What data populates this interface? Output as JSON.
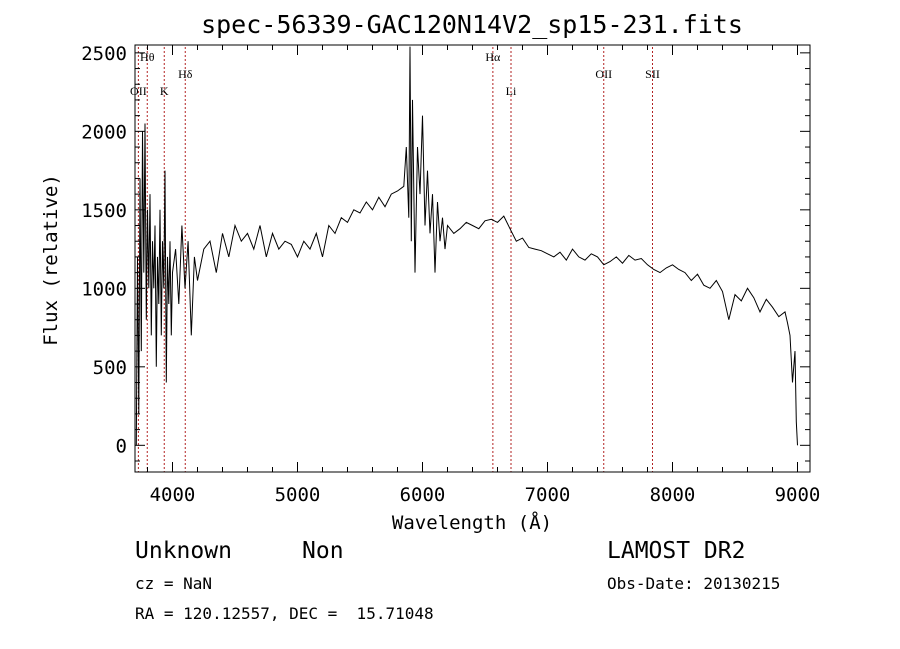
{
  "chart_data": {
    "type": "line",
    "title": "spec-56339-GAC120N14V2_sp15-231.fits",
    "xlabel": "Wavelength (Å)",
    "ylabel": "Flux (relative)",
    "xlim": [
      3700,
      9100
    ],
    "ylim": [
      -170,
      2550
    ],
    "xticks": [
      4000,
      5000,
      6000,
      7000,
      8000,
      9000
    ],
    "yticks": [
      0,
      500,
      1000,
      1500,
      2000,
      2500
    ],
    "grid": false,
    "line_color": "#000000",
    "marker_color": "#b22222",
    "spectral_lines": [
      {
        "label": "OII",
        "x": 3727,
        "tier": "low"
      },
      {
        "label": "Hθ",
        "x": 3798,
        "tier": "high"
      },
      {
        "label": "K",
        "x": 3934,
        "tier": "low"
      },
      {
        "label": "Hδ",
        "x": 4102,
        "tier": "mid"
      },
      {
        "label": "Hα",
        "x": 6563,
        "tier": "high"
      },
      {
        "label": "Li",
        "x": 6708,
        "tier": "low"
      },
      {
        "label": "OII",
        "x": 7450,
        "tier": "mid"
      },
      {
        "label": "SII",
        "x": 7840,
        "tier": "mid"
      }
    ],
    "series": [
      {
        "x": [
          3710,
          3720,
          3730,
          3740,
          3750,
          3760,
          3770,
          3780,
          3790,
          3800,
          3810,
          3820,
          3830,
          3840,
          3850,
          3860,
          3870,
          3880,
          3890,
          3900,
          3910,
          3920,
          3930,
          3940,
          3950,
          3960,
          3970,
          3980,
          3990,
          4000,
          4025,
          4050,
          4075,
          4100,
          4125,
          4150,
          4175,
          4200,
          4250,
          4300,
          4350,
          4400,
          4450,
          4500,
          4550,
          4600,
          4650,
          4700,
          4750,
          4800,
          4850,
          4900,
          4950,
          5000,
          5050,
          5100,
          5150,
          5200,
          5250,
          5300,
          5350,
          5400,
          5450,
          5500,
          5550,
          5600,
          5650,
          5700,
          5750,
          5800,
          5850,
          5870,
          5890,
          5900,
          5910,
          5920,
          5940,
          5960,
          5980,
          6000,
          6020,
          6040,
          6060,
          6080,
          6100,
          6120,
          6140,
          6160,
          6180,
          6200,
          6250,
          6300,
          6350,
          6400,
          6450,
          6500,
          6550,
          6600,
          6650,
          6700,
          6750,
          6800,
          6850,
          6900,
          6950,
          7000,
          7050,
          7100,
          7150,
          7200,
          7250,
          7300,
          7350,
          7400,
          7450,
          7500,
          7550,
          7600,
          7650,
          7700,
          7750,
          7800,
          7850,
          7900,
          7950,
          8000,
          8050,
          8100,
          8150,
          8200,
          8250,
          8300,
          8350,
          8400,
          8450,
          8500,
          8550,
          8600,
          8650,
          8700,
          8750,
          8800,
          8850,
          8900,
          8920,
          8940,
          8960,
          8980,
          8990,
          9000
        ],
        "y": [
          0,
          1200,
          200,
          1700,
          600,
          2000,
          1100,
          2050,
          800,
          1500,
          1000,
          1600,
          700,
          1300,
          1000,
          1400,
          500,
          1200,
          900,
          1500,
          700,
          1300,
          1000,
          1750,
          400,
          1200,
          900,
          1300,
          700,
          1100,
          1250,
          900,
          1400,
          1000,
          1300,
          700,
          1200,
          1050,
          1250,
          1300,
          1100,
          1350,
          1200,
          1400,
          1300,
          1350,
          1250,
          1400,
          1200,
          1350,
          1250,
          1300,
          1280,
          1200,
          1300,
          1250,
          1350,
          1200,
          1400,
          1350,
          1450,
          1420,
          1500,
          1480,
          1550,
          1500,
          1580,
          1520,
          1600,
          1620,
          1650,
          1900,
          1450,
          2540,
          1300,
          2200,
          1100,
          1900,
          1600,
          2100,
          1400,
          1750,
          1350,
          1600,
          1100,
          1550,
          1300,
          1450,
          1250,
          1400,
          1350,
          1380,
          1420,
          1400,
          1380,
          1430,
          1440,
          1420,
          1460,
          1380,
          1300,
          1320,
          1260,
          1250,
          1240,
          1220,
          1200,
          1230,
          1180,
          1250,
          1200,
          1180,
          1220,
          1200,
          1150,
          1170,
          1200,
          1160,
          1210,
          1180,
          1190,
          1150,
          1120,
          1100,
          1130,
          1150,
          1120,
          1100,
          1050,
          1090,
          1020,
          1000,
          1050,
          980,
          800,
          960,
          920,
          1000,
          940,
          850,
          930,
          880,
          820,
          850,
          780,
          700,
          400,
          600,
          150,
          0
        ]
      }
    ]
  },
  "info": {
    "object_class": "Unknown",
    "object_subclass": "Non",
    "redshift": "cz = NaN",
    "coordinates": "RA = 120.12557, DEC =  15.71048",
    "survey": "LAMOST DR2",
    "obs_date": "Obs-Date: 20130215"
  }
}
